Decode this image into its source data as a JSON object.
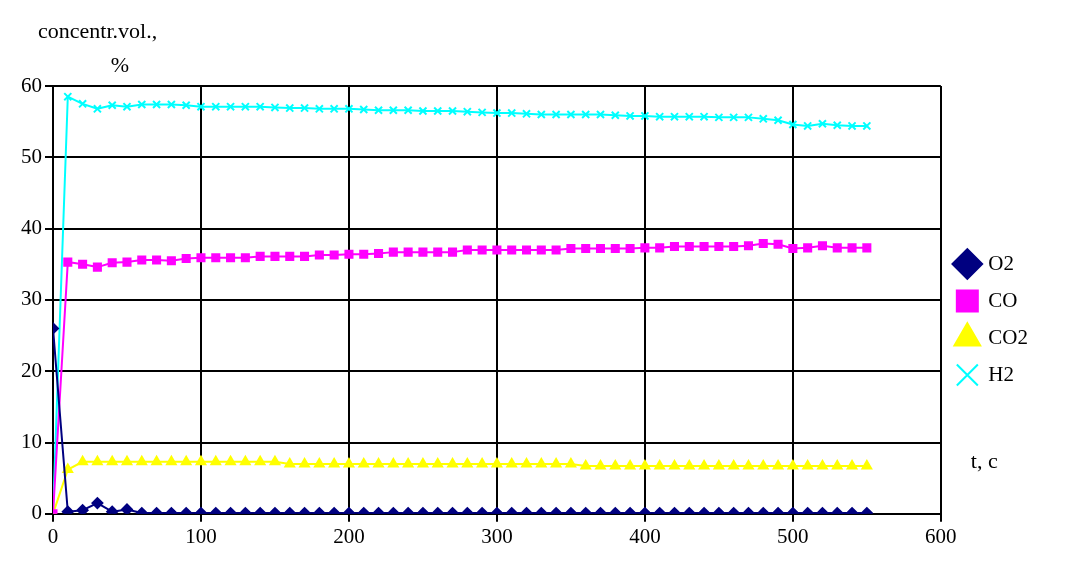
{
  "chart_data": {
    "type": "line",
    "ylabel": "concentr.vol., %",
    "xlabel": "t, c",
    "x": [
      0,
      10,
      20,
      30,
      40,
      50,
      60,
      70,
      80,
      90,
      100,
      110,
      120,
      130,
      140,
      150,
      160,
      170,
      180,
      190,
      200,
      210,
      220,
      230,
      240,
      250,
      260,
      270,
      280,
      290,
      300,
      310,
      320,
      330,
      340,
      350,
      360,
      370,
      380,
      390,
      400,
      410,
      420,
      430,
      440,
      450,
      460,
      470,
      480,
      490,
      500,
      510,
      520,
      530,
      540,
      550
    ],
    "xlim": [
      0,
      600
    ],
    "xticks": [
      0,
      100,
      200,
      300,
      400,
      500,
      600
    ],
    "ylim": [
      0,
      60
    ],
    "yticks": [
      0,
      10,
      20,
      30,
      40,
      50,
      60
    ],
    "grid": true,
    "legend": "right",
    "line_style": "solid",
    "series": [
      {
        "name": "O2",
        "color": "#000080",
        "marker": "diamond",
        "values": [
          26,
          0.3,
          0.5,
          1.5,
          0.3,
          0.6,
          0.1,
          0.1,
          0.1,
          0.1,
          0.1,
          0.1,
          0.1,
          0.1,
          0.1,
          0.1,
          0.1,
          0.1,
          0.1,
          0.1,
          0.1,
          0.1,
          0.1,
          0.1,
          0.1,
          0.1,
          0.1,
          0.1,
          0.1,
          0.1,
          0.1,
          0.1,
          0.1,
          0.1,
          0.1,
          0.1,
          0.1,
          0.1,
          0.1,
          0.1,
          0.1,
          0.1,
          0.1,
          0.1,
          0.1,
          0.1,
          0.1,
          0.1,
          0.1,
          0.1,
          0.1,
          0.1,
          0.1,
          0.1,
          0.1,
          0.1
        ]
      },
      {
        "name": "CO",
        "color": "#ff00ff",
        "marker": "square",
        "values": [
          0,
          35.3,
          35.0,
          34.6,
          35.2,
          35.3,
          35.6,
          35.6,
          35.5,
          35.8,
          35.9,
          35.9,
          35.9,
          35.9,
          36.1,
          36.1,
          36.1,
          36.1,
          36.3,
          36.3,
          36.4,
          36.4,
          36.5,
          36.7,
          36.7,
          36.7,
          36.7,
          36.7,
          37.0,
          37.0,
          37.0,
          37.0,
          37.0,
          37.0,
          37.0,
          37.2,
          37.2,
          37.2,
          37.2,
          37.2,
          37.3,
          37.3,
          37.5,
          37.5,
          37.5,
          37.5,
          37.5,
          37.6,
          37.9,
          37.8,
          37.2,
          37.3,
          37.6,
          37.3,
          37.3,
          37.3
        ]
      },
      {
        "name": "CO2",
        "color": "#ffff00",
        "marker": "triangle",
        "values": [
          0,
          6.2,
          7.3,
          7.3,
          7.3,
          7.3,
          7.3,
          7.3,
          7.3,
          7.3,
          7.3,
          7.3,
          7.3,
          7.3,
          7.3,
          7.3,
          7.0,
          7.0,
          7.0,
          7.0,
          7.0,
          7.0,
          7.0,
          7.0,
          7.0,
          7.0,
          7.0,
          7.0,
          7.0,
          7.0,
          7.0,
          7.0,
          7.0,
          7.0,
          7.0,
          7.0,
          6.7,
          6.7,
          6.7,
          6.7,
          6.7,
          6.7,
          6.7,
          6.7,
          6.7,
          6.7,
          6.7,
          6.7,
          6.7,
          6.7,
          6.7,
          6.7,
          6.7,
          6.7,
          6.7,
          6.7
        ]
      },
      {
        "name": "H2",
        "color": "#00ffff",
        "marker": "cross",
        "values": [
          0,
          58.5,
          57.5,
          56.8,
          57.3,
          57.1,
          57.4,
          57.4,
          57.4,
          57.3,
          57.1,
          57.1,
          57.1,
          57.1,
          57.1,
          57.0,
          56.9,
          56.9,
          56.8,
          56.8,
          56.8,
          56.7,
          56.6,
          56.6,
          56.6,
          56.5,
          56.5,
          56.5,
          56.4,
          56.3,
          56.2,
          56.2,
          56.1,
          56.0,
          56.0,
          56.0,
          56.0,
          56.0,
          55.9,
          55.8,
          55.8,
          55.7,
          55.7,
          55.7,
          55.7,
          55.6,
          55.6,
          55.6,
          55.4,
          55.2,
          54.6,
          54.4,
          54.7,
          54.5,
          54.4,
          54.4
        ]
      }
    ]
  }
}
